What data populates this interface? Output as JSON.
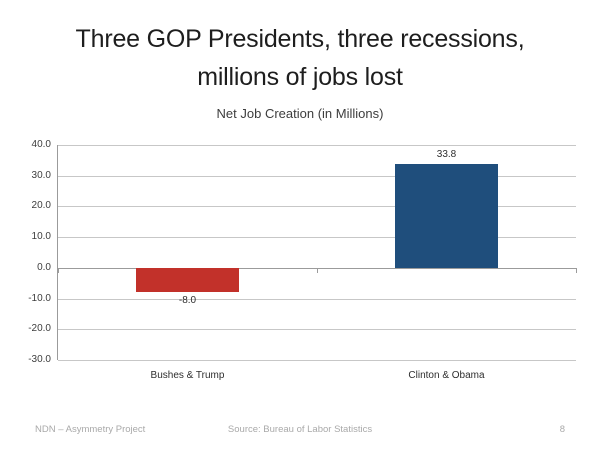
{
  "slide": {
    "title_lines": [
      "Three GOP Presidents, three recessions,",
      "millions of jobs lost"
    ],
    "footer": {
      "left": "NDN – Asymmetry Project",
      "center": "Source: Bureau of Labor Statistics",
      "page": "8"
    }
  },
  "chart_data": {
    "type": "bar",
    "title": "Net Job Creation (in Millions)",
    "categories": [
      "Bushes & Trump",
      "Clinton & Obama"
    ],
    "values": [
      -8.0,
      33.8
    ],
    "data_labels": [
      "-8.0",
      "33.8"
    ],
    "bar_colors": [
      "#c2312a",
      "#1f4e7c"
    ],
    "xlabel": "",
    "ylabel": "",
    "ylim": [
      -30,
      40
    ],
    "yticks": [
      40,
      30,
      20,
      10,
      0,
      -10,
      -20,
      -30
    ],
    "ytick_labels": [
      "40.0",
      "30.0",
      "20.0",
      "10.0",
      "0.0",
      "-10.0",
      "-20.0",
      "-30.0"
    ],
    "grid": true,
    "legend": "none"
  },
  "colors": {
    "title_text": "#1e1e1e",
    "chart_text": "#3d3d3d",
    "gridline": "#c7c7c7",
    "axis": "#9b9b9b",
    "bar_negative": "#c2312a",
    "bar_positive": "#1f4e7c",
    "footer_text": "#a9a9a9"
  }
}
